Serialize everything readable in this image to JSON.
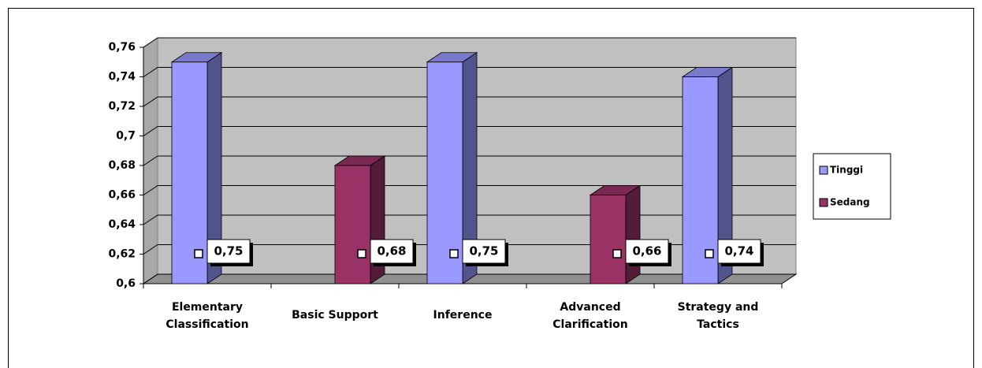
{
  "chart_data": {
    "type": "bar3d",
    "categories": [
      "Elementary Classification",
      "Basic Support",
      "Inference",
      "Advanced Clarification",
      "Strategy and Tactics"
    ],
    "series": [
      {
        "name": "Tinggi",
        "color": "#9999ff",
        "values": [
          0.75,
          null,
          0.75,
          null,
          0.74
        ],
        "value_labels": [
          "0,75",
          null,
          "0,75",
          null,
          "0,74"
        ]
      },
      {
        "name": "Sedang",
        "color": "#993366",
        "values": [
          null,
          0.68,
          null,
          0.66,
          null
        ],
        "value_labels": [
          null,
          "0,68",
          null,
          "0,66",
          null
        ]
      }
    ],
    "ylim": [
      0.6,
      0.76
    ],
    "yticks": [
      {
        "value": 0.6,
        "label": "0,6"
      },
      {
        "value": 0.62,
        "label": "0,62"
      },
      {
        "value": 0.64,
        "label": "0,64"
      },
      {
        "value": 0.66,
        "label": "0,66"
      },
      {
        "value": 0.68,
        "label": "0,68"
      },
      {
        "value": 0.7,
        "label": "0,7"
      },
      {
        "value": 0.72,
        "label": "0,72"
      },
      {
        "value": 0.74,
        "label": "0,74"
      },
      {
        "value": 0.76,
        "label": "0,76"
      }
    ],
    "grid": true,
    "legend": "right"
  }
}
